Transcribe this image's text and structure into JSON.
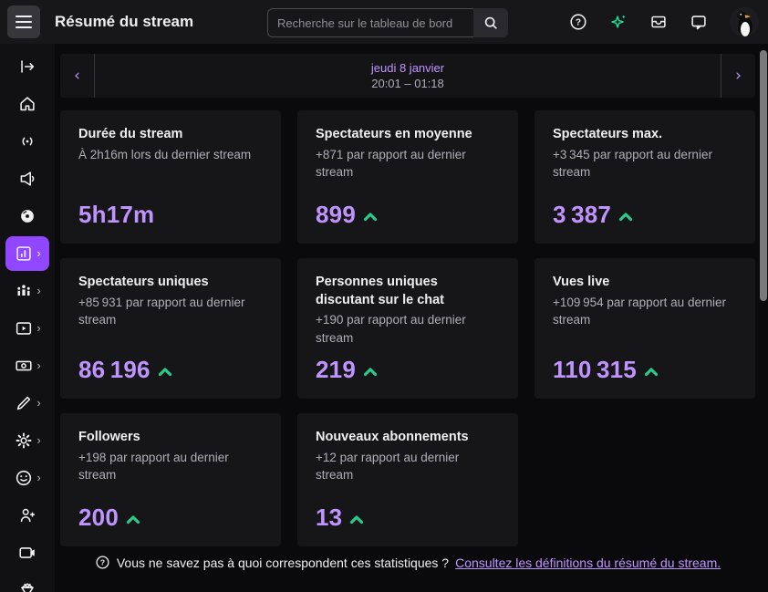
{
  "topbar": {
    "title": "Résumé du stream",
    "search_placeholder": "Recherche sur le tableau de bord",
    "icons": [
      {
        "name": "help-icon"
      },
      {
        "name": "sparkle-icon"
      },
      {
        "name": "inbox-icon"
      },
      {
        "name": "whisper-icon"
      },
      {
        "name": "avatar-penguin"
      }
    ]
  },
  "sidebar": {
    "items": [
      {
        "name": "collapse-sidebar",
        "icon": "expand-icon",
        "chevron": false,
        "active": false
      },
      {
        "name": "home",
        "icon": "home-icon",
        "chevron": false,
        "active": false
      },
      {
        "name": "stream-manager",
        "icon": "broadcast-icon",
        "chevron": false,
        "active": false
      },
      {
        "name": "announcements",
        "icon": "megaphone-icon",
        "chevron": false,
        "active": false
      },
      {
        "name": "music",
        "icon": "disc-icon",
        "chevron": false,
        "active": false
      },
      {
        "name": "analytics",
        "icon": "analytics-icon",
        "chevron": true,
        "active": true
      },
      {
        "name": "community",
        "icon": "community-icon",
        "chevron": true,
        "active": false
      },
      {
        "name": "content",
        "icon": "video-content-icon",
        "chevron": true,
        "active": false
      },
      {
        "name": "monetization",
        "icon": "banknote-icon",
        "chevron": true,
        "active": false
      },
      {
        "name": "customization",
        "icon": "pen-icon",
        "chevron": true,
        "active": false
      },
      {
        "name": "settings",
        "icon": "gear-icon",
        "chevron": true,
        "active": false
      },
      {
        "name": "viewer-rewards",
        "icon": "smiley-icon",
        "chevron": true,
        "active": false
      },
      {
        "name": "invite-member",
        "icon": "person-add-icon",
        "chevron": false,
        "active": false
      },
      {
        "name": "camera",
        "icon": "camera-icon",
        "chevron": false,
        "active": false
      },
      {
        "name": "gem",
        "icon": "gem-icon",
        "chevron": false,
        "active": false
      }
    ]
  },
  "datebar": {
    "date": "jeudi 8 janvier",
    "time_range": "20:01 – 01:18"
  },
  "cards": [
    {
      "title": "Durée du stream",
      "subtitle": "À 2h16m lors du dernier stream",
      "value": "5h17m",
      "trend": null
    },
    {
      "title": "Spectateurs en moyenne",
      "subtitle": "+871 par rapport au dernier stream",
      "value": "899",
      "trend": "up"
    },
    {
      "title": "Spectateurs max.",
      "subtitle": "+3 345 par rapport au dernier stream",
      "value": "3 387",
      "trend": "up"
    },
    {
      "title": "Spectateurs uniques",
      "subtitle": "+85 931 par rapport au dernier stream",
      "value": "86 196",
      "trend": "up"
    },
    {
      "title": "Personnes uniques discutant sur le chat",
      "subtitle": "+190 par rapport au dernier stream",
      "value": "219",
      "trend": "up"
    },
    {
      "title": "Vues live",
      "subtitle": "+109 954 par rapport au dernier stream",
      "value": "110 315",
      "trend": "up"
    },
    {
      "title": "Followers",
      "subtitle": "+198 par rapport au dernier stream",
      "value": "200",
      "trend": "up"
    },
    {
      "title": "Nouveaux abonnements",
      "subtitle": "+12 par rapport au dernier stream",
      "value": "13",
      "trend": "up"
    }
  ],
  "footer": {
    "question": "Vous ne savez pas à quoi correspondent ces statistiques ?",
    "link": "Consultez les définitions du résumé du stream."
  },
  "colors": {
    "accent": "#9147ff",
    "value_purple": "#bf94ff",
    "positive_green": "#2bc98b",
    "sparkle_green": "#1fe096"
  }
}
